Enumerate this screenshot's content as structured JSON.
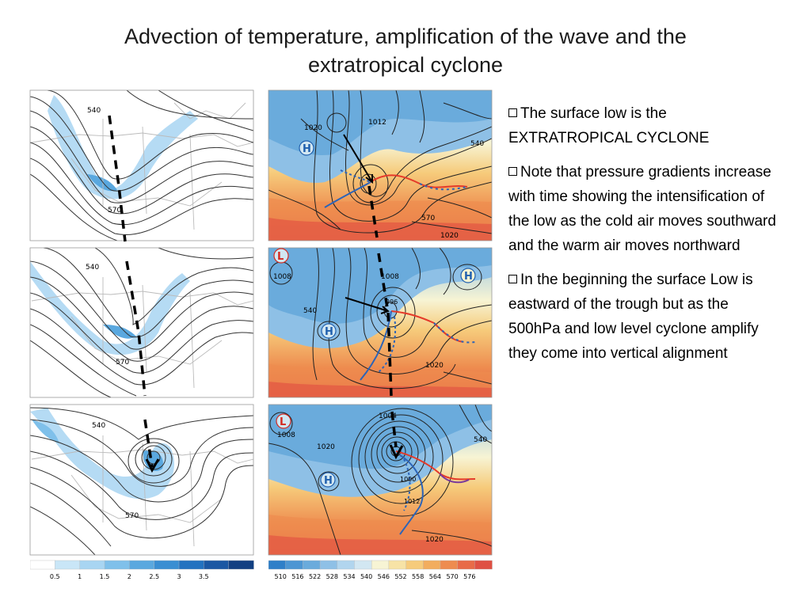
{
  "title_line1": "Advection of temperature, amplification of the wave and the",
  "title_line2": "extratropical cyclone",
  "bullets": [
    {
      "text": "The surface low is the EXTRATROPICAL CYCLONE"
    },
    {
      "text": "Note that pressure gradients increase with time showing the intensification of the low as the cold air moves southward and the warm air moves northward"
    },
    {
      "text": "In the beginning the surface Low is eastward  of the trough but as the 500hPa and low level cyclone amplify they come into vertical alignment"
    }
  ],
  "left_maps": [
    {
      "contours": [
        "540",
        "570"
      ]
    },
    {
      "contours": [
        "540",
        "570"
      ]
    },
    {
      "contours": [
        "540",
        "570"
      ]
    }
  ],
  "right_maps": [
    {
      "labels": [
        "1020",
        "1012",
        "1020",
        "540",
        "570",
        "H"
      ]
    },
    {
      "labels": [
        "1008",
        "1008",
        "540",
        "996",
        "1020",
        "L",
        "H",
        "H"
      ]
    },
    {
      "labels": [
        "1008",
        "1004",
        "1020",
        "1000",
        "1012",
        "1020",
        "540",
        "L",
        "H"
      ]
    }
  ],
  "left_colorbar": {
    "ticks": [
      "0.5",
      "1",
      "1.5",
      "2",
      "2.5",
      "3",
      "3.5"
    ],
    "colors": [
      "#ffffff",
      "#c9e6f7",
      "#a8d5f2",
      "#7fc0ea",
      "#5aa8df",
      "#3a8ed2",
      "#2272c0",
      "#1a57a3",
      "#123f82"
    ]
  },
  "right_colorbar": {
    "ticks": [
      "510",
      "516",
      "522",
      "528",
      "534",
      "540",
      "546",
      "552",
      "558",
      "564",
      "570",
      "576"
    ],
    "colors": [
      "#2f7fc8",
      "#4d96d3",
      "#6aabdc",
      "#8ec0e6",
      "#b1d5ee",
      "#d2e7f2",
      "#f7f4d4",
      "#f7e3a6",
      "#f6cb7b",
      "#f2ad5e",
      "#ee8c4f",
      "#e86b48",
      "#df5043"
    ]
  },
  "colors": {
    "warm_front": "#e53a2a",
    "cold_front": "#2c64b8",
    "high": "#1f5fae",
    "low": "#d4291f"
  }
}
